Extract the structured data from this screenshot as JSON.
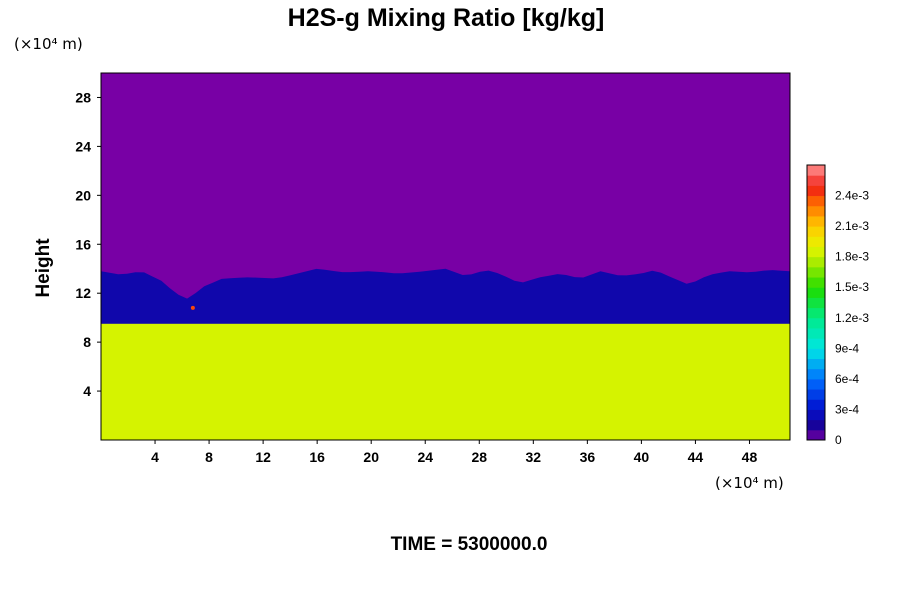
{
  "chart_data": {
    "type": "heatmap",
    "title": "H2S-g Mixing Ratio [kg/kg]",
    "ylabel": "Height",
    "x_unit": "(×10⁴ m)",
    "y_unit": "(×10⁴ m)",
    "xlim": [
      0,
      51
    ],
    "ylim": [
      0,
      30
    ],
    "x_ticks": [
      4,
      8,
      12,
      16,
      20,
      24,
      28,
      32,
      36,
      40,
      44,
      48
    ],
    "y_ticks": [
      4,
      8,
      12,
      16,
      20,
      24,
      28
    ],
    "colorbar": {
      "range": [
        0,
        0.0027
      ],
      "tick_values": [
        0,
        0.0003,
        0.0006,
        0.0009,
        0.0012,
        0.0015,
        0.0018,
        0.0021,
        0.0024
      ],
      "tick_labels": [
        "0",
        "3e-4",
        "6e-4",
        "9e-4",
        "1.2e-3",
        "1.5e-3",
        "1.8e-3",
        "2.1e-3",
        "2.4e-3"
      ]
    },
    "field": {
      "background_value": 0,
      "lower_layer_value": 0.00185,
      "lower_layer_top": 9.5,
      "transition_values": [
        0.0016,
        0.0013,
        0.0011,
        0.0008,
        0.0005,
        0.0002
      ],
      "interface_x": [
        0,
        1.5,
        3,
        4.5,
        5.5,
        6.5,
        7.5,
        9,
        11,
        13,
        14.5,
        16,
        18,
        20,
        22,
        24,
        25.5,
        27,
        28.5,
        29.5,
        31,
        32.5,
        34,
        35.5,
        37,
        38.5,
        40,
        41,
        42,
        43.5,
        45,
        46.5,
        48,
        49.5,
        51
      ],
      "interface_y": [
        13.8,
        13.5,
        13.8,
        13.0,
        12.0,
        11.5,
        12.5,
        13.2,
        13.3,
        13.2,
        13.6,
        14.0,
        13.7,
        13.8,
        13.6,
        13.8,
        14.0,
        13.4,
        13.9,
        13.6,
        12.8,
        13.3,
        13.6,
        13.2,
        13.8,
        13.4,
        13.6,
        13.9,
        13.4,
        12.7,
        13.5,
        13.8,
        13.7,
        13.9,
        13.8
      ],
      "hotspot": {
        "x": 6.8,
        "y": 10.8,
        "value": 0.0024
      }
    }
  },
  "footer": {
    "time_label": "TIME = 5300000.0"
  }
}
